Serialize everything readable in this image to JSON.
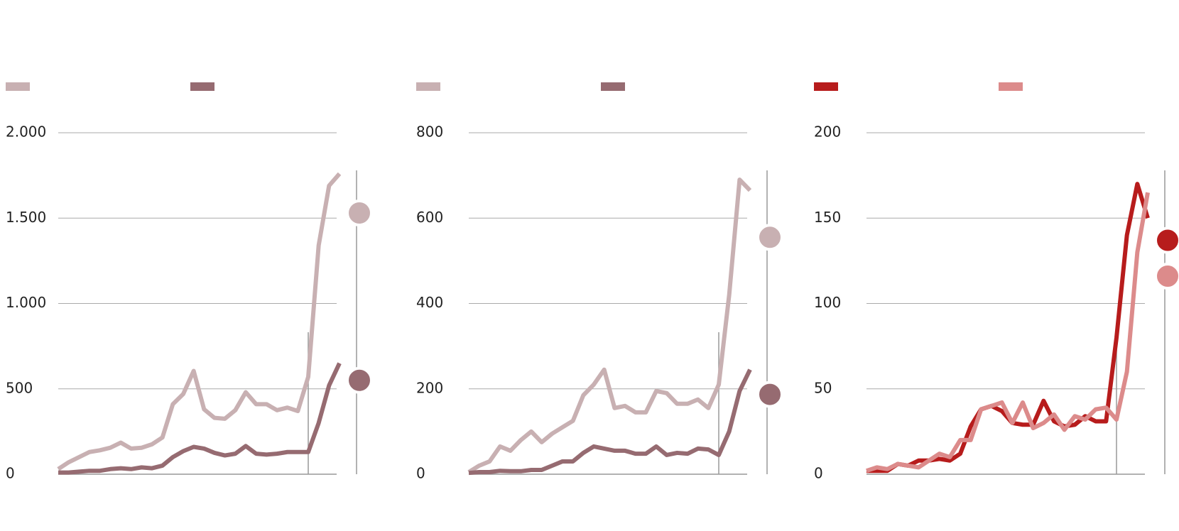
{
  "chart_data": [
    {
      "type": "line",
      "series": [
        {
          "color": "#c8b0b2",
          "values": [
            30,
            70,
            100,
            130,
            140,
            155,
            185,
            150,
            155,
            175,
            215,
            410,
            470,
            605,
            380,
            330,
            325,
            375,
            480,
            410,
            410,
            375,
            390,
            370,
            570,
            1340,
            1690,
            1760,
            1530
          ]
        },
        {
          "color": "#966b71",
          "values": [
            10,
            10,
            15,
            20,
            20,
            30,
            35,
            30,
            40,
            35,
            50,
            100,
            135,
            160,
            150,
            125,
            110,
            120,
            165,
            120,
            115,
            120,
            130,
            130,
            130,
            300,
            520,
            650,
            550
          ]
        }
      ],
      "ylim": [
        0,
        2000
      ],
      "yticks": [
        0,
        500,
        {
          "value": 1000,
          "label": "1.000"
        },
        {
          "value": 1500,
          "label": "1.500"
        },
        {
          "value": 2000,
          "label": "2.000"
        }
      ],
      "grid": true
    },
    {
      "type": "line",
      "series": [
        {
          "color": "#c8b0b2",
          "values": [
            5,
            20,
            30,
            65,
            55,
            80,
            100,
            75,
            95,
            110,
            125,
            185,
            210,
            245,
            155,
            160,
            145,
            145,
            195,
            190,
            165,
            165,
            175,
            155,
            210,
            420,
            690,
            665,
            555
          ]
        },
        {
          "color": "#966b71",
          "values": [
            3,
            5,
            5,
            8,
            7,
            7,
            10,
            10,
            20,
            30,
            30,
            50,
            65,
            60,
            55,
            55,
            48,
            48,
            65,
            45,
            50,
            48,
            60,
            58,
            45,
            100,
            195,
            245,
            187
          ]
        }
      ],
      "ylim": [
        0,
        800
      ],
      "yticks": [
        0,
        200,
        400,
        600,
        800
      ],
      "grid": true
    },
    {
      "type": "line",
      "series": [
        {
          "color": "#b71c1c",
          "values": [
            2,
            2,
            2,
            6,
            5,
            8,
            8,
            9,
            8,
            12,
            28,
            38,
            40,
            37,
            30,
            29,
            29,
            43,
            31,
            28,
            29,
            34,
            31,
            31,
            80,
            140,
            170,
            150,
            137
          ]
        },
        {
          "color": "#dc8b8b",
          "values": [
            2,
            4,
            3,
            6,
            5,
            4,
            8,
            12,
            10,
            20,
            20,
            38,
            40,
            42,
            30,
            42,
            27,
            30,
            35,
            26,
            34,
            32,
            38,
            39,
            32,
            60,
            130,
            165,
            116
          ]
        }
      ],
      "ylim": [
        0,
        200
      ],
      "yticks": [
        0,
        50,
        100,
        150,
        200
      ],
      "grid": true
    }
  ]
}
